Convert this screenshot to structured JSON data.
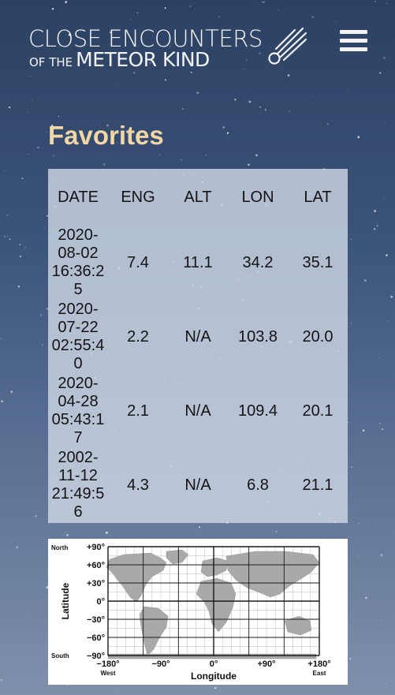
{
  "header": {
    "logo_line1": "CLOSE ENCOUNTERS",
    "logo_line2_small": "OF THE",
    "logo_line2_big": "METEOR KIND",
    "menu_icon": "hamburger-menu-icon"
  },
  "page": {
    "title": "Favorites"
  },
  "favorites": {
    "columns": [
      "DATE",
      "ENG",
      "ALT",
      "LON",
      "LAT"
    ],
    "rows": [
      {
        "date_l1": "2020-",
        "date_l2": "08-02",
        "date_l3": "16:36:25",
        "eng": "7.4",
        "alt": "11.1",
        "lon": "34.2",
        "lat": "35.1"
      },
      {
        "date_l1": "2020-",
        "date_l2": "07-22",
        "date_l3": "02:55:40",
        "eng": "2.2",
        "alt": "N/A",
        "lon": "103.8",
        "lat": "20.0"
      },
      {
        "date_l1": "2020-",
        "date_l2": "04-28",
        "date_l3": "05:43:17",
        "eng": "2.1",
        "alt": "N/A",
        "lon": "109.4",
        "lat": "20.1"
      },
      {
        "date_l1": "2002-",
        "date_l2": "11-12",
        "date_l3": "21:49:56",
        "eng": "4.3",
        "alt": "N/A",
        "lon": "6.8",
        "lat": "21.1"
      }
    ]
  },
  "map": {
    "lat_labels": [
      "+90",
      "+60",
      "+30",
      "0",
      "−30",
      "−60",
      "−90"
    ],
    "lon_labels": [
      "−180",
      "−90",
      "0",
      "+90",
      "+180"
    ],
    "north": "North",
    "south": "South",
    "west": "West",
    "east": "East",
    "ylabel": "Latitude",
    "xlabel": "Longitude",
    "degree": "°"
  },
  "colors": {
    "title": "#f3d6a8",
    "panel": "#cdd6e4",
    "text": "#141414"
  }
}
